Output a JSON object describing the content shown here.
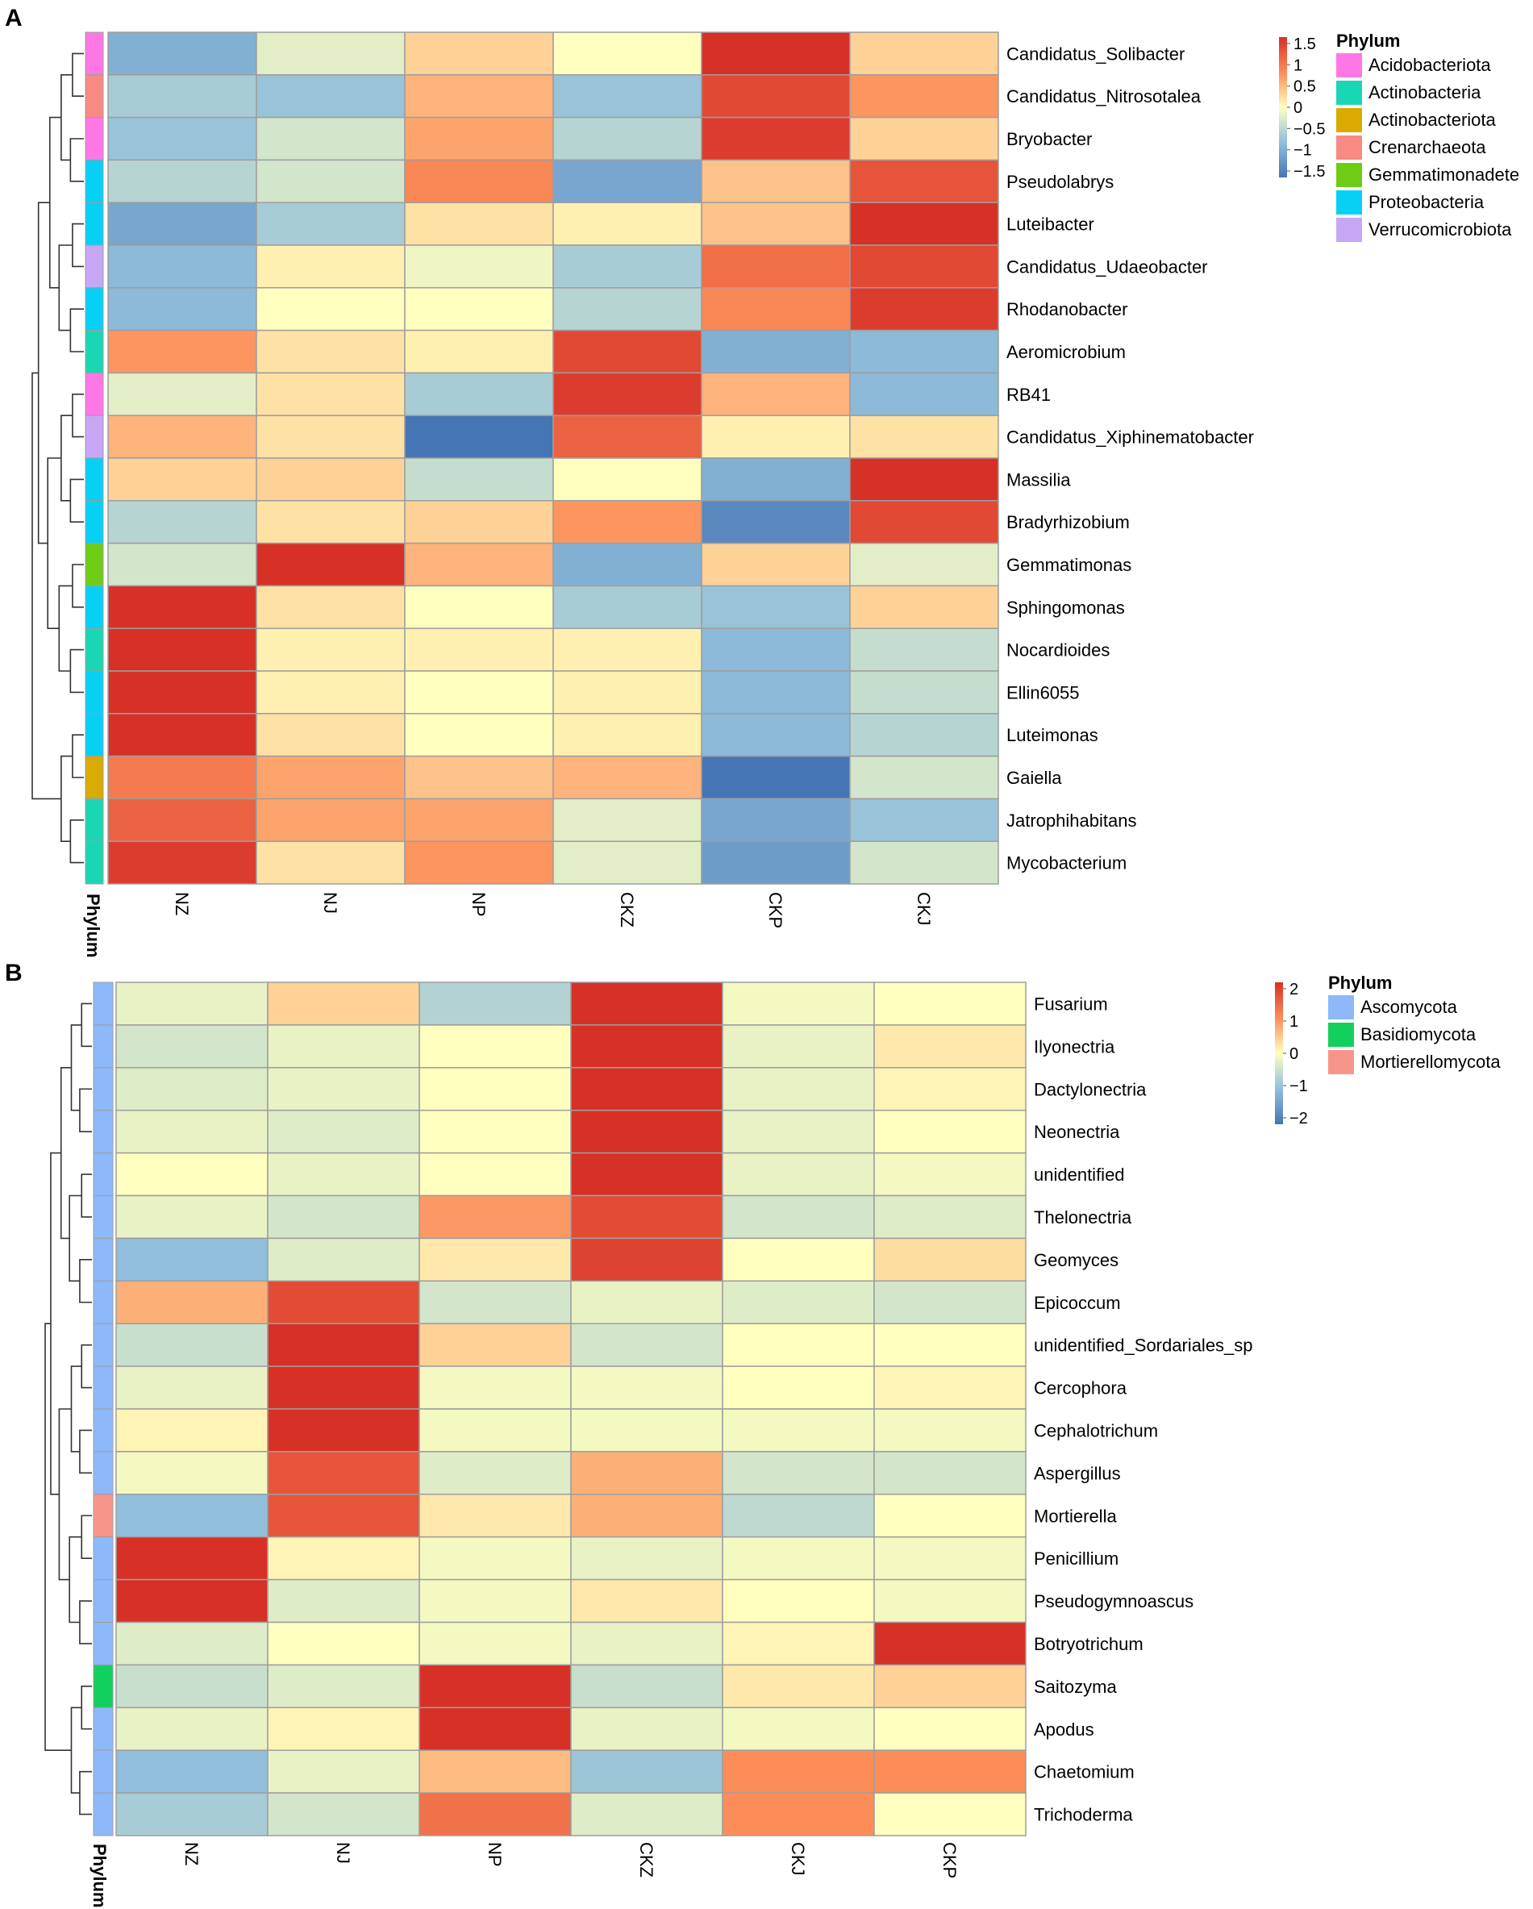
{
  "chart_data": [
    {
      "type": "heatmap",
      "panel": "A",
      "columns": [
        "NZ",
        "NJ",
        "NP",
        "CKZ",
        "CKP",
        "CKJ"
      ],
      "phylum_axis_label": "Phylum",
      "rows": [
        {
          "name": "Candidatus_Solibacter",
          "phylum": "Acidobacteriota",
          "values": [
            -0.9,
            -0.2,
            0.3,
            0.0,
            1.7,
            0.3
          ]
        },
        {
          "name": "Candidatus_Nitrosotalea",
          "phylum": "Crenarchaeota",
          "values": [
            -0.6,
            -0.7,
            0.5,
            -0.7,
            1.3,
            0.7
          ]
        },
        {
          "name": "Bryobacter",
          "phylum": "Acidobacteriota",
          "values": [
            -0.7,
            -0.3,
            0.6,
            -0.5,
            1.4,
            0.3
          ]
        },
        {
          "name": "Pseudolabrys",
          "phylum": "Proteobacteria",
          "values": [
            -0.5,
            -0.3,
            0.8,
            -1.0,
            0.4,
            1.2
          ]
        },
        {
          "name": "Luteibacter",
          "phylum": "Proteobacteria",
          "values": [
            -1.0,
            -0.6,
            0.2,
            0.1,
            0.4,
            1.5
          ]
        },
        {
          "name": "Candidatus_Udaeobacter",
          "phylum": "Verrucomicrobiota",
          "values": [
            -0.8,
            0.1,
            -0.1,
            -0.6,
            1.0,
            1.3
          ]
        },
        {
          "name": "Rhodanobacter",
          "phylum": "Proteobacteria",
          "values": [
            -0.8,
            0.0,
            0.0,
            -0.5,
            0.8,
            1.4
          ]
        },
        {
          "name": "Aeromicrobium",
          "phylum": "Actinobacteria",
          "values": [
            0.7,
            0.2,
            0.1,
            1.3,
            -0.9,
            -0.8
          ]
        },
        {
          "name": "RB41",
          "phylum": "Acidobacteriota",
          "values": [
            -0.2,
            0.2,
            -0.6,
            1.4,
            0.5,
            -0.8
          ]
        },
        {
          "name": "Candidatus_Xiphinematobacter",
          "phylum": "Verrucomicrobiota",
          "values": [
            0.5,
            0.2,
            -1.8,
            1.1,
            0.1,
            0.2
          ]
        },
        {
          "name": "Massilia",
          "phylum": "Proteobacteria",
          "values": [
            0.3,
            0.3,
            -0.4,
            0.0,
            -0.9,
            1.7
          ]
        },
        {
          "name": "Bradyrhizobium",
          "phylum": "Proteobacteria",
          "values": [
            -0.5,
            0.2,
            0.3,
            0.7,
            -1.3,
            1.3
          ]
        },
        {
          "name": "Gemmatimonas",
          "phylum": "Gemmatimonadete",
          "values": [
            -0.3,
            1.5,
            0.5,
            -0.9,
            0.3,
            -0.2
          ]
        },
        {
          "name": "Sphingomonas",
          "phylum": "Proteobacteria",
          "values": [
            1.8,
            0.2,
            0.0,
            -0.6,
            -0.7,
            0.3
          ]
        },
        {
          "name": "Nocardioides",
          "phylum": "Actinobacteria",
          "values": [
            1.8,
            0.1,
            0.1,
            0.1,
            -0.8,
            -0.4
          ]
        },
        {
          "name": "Ellin6055",
          "phylum": "Proteobacteria",
          "values": [
            1.8,
            0.1,
            0.0,
            0.1,
            -0.8,
            -0.4
          ]
        },
        {
          "name": "Luteimonas",
          "phylum": "Proteobacteria",
          "values": [
            1.8,
            0.2,
            0.0,
            0.1,
            -0.8,
            -0.5
          ]
        },
        {
          "name": "Gaiella",
          "phylum": "Actinobacteriota",
          "values": [
            0.9,
            0.6,
            0.4,
            0.5,
            -1.6,
            -0.3
          ]
        },
        {
          "name": "Jatrophihabitans",
          "phylum": "Actinobacteria",
          "values": [
            1.1,
            0.6,
            0.6,
            -0.2,
            -1.0,
            -0.7
          ]
        },
        {
          "name": "Mycobacterium",
          "phylum": "Actinobacteria",
          "values": [
            1.4,
            0.2,
            0.7,
            -0.2,
            -1.1,
            -0.3
          ]
        }
      ],
      "color_scale": {
        "min": -1.5,
        "max": 1.5,
        "ticks": [
          "1.5",
          "1",
          "0.5",
          "0",
          "−0.5",
          "−1",
          "−1.5"
        ]
      },
      "legend": {
        "title": "Phylum",
        "items": [
          {
            "label": "Acidobacteriota",
            "color": "#ff77e6"
          },
          {
            "label": "Actinobacteria",
            "color": "#19d7b4"
          },
          {
            "label": "Actinobacteriota",
            "color": "#d9ab00"
          },
          {
            "label": "Crenarchaeota",
            "color": "#f88a82"
          },
          {
            "label": "Gemmatimonadete",
            "color": "#6fcc16"
          },
          {
            "label": "Proteobacteria",
            "color": "#06d0f5"
          },
          {
            "label": "Verrucomicrobiota",
            "color": "#c7a6f6"
          }
        ]
      }
    },
    {
      "type": "heatmap",
      "panel": "B",
      "columns": [
        "NZ",
        "NJ",
        "NP",
        "CKZ",
        "CKJ",
        "CKP"
      ],
      "phylum_axis_label": "Phylum",
      "rows": [
        {
          "name": "Fusarium",
          "phylum": "Ascomycota",
          "values": [
            -0.2,
            0.4,
            -0.7,
            2.2,
            -0.1,
            0.0
          ]
        },
        {
          "name": "Ilyonectria",
          "phylum": "Ascomycota",
          "values": [
            -0.4,
            -0.2,
            0.0,
            2.2,
            -0.2,
            0.2
          ]
        },
        {
          "name": "Dactylonectria",
          "phylum": "Ascomycota",
          "values": [
            -0.3,
            -0.2,
            0.0,
            2.2,
            -0.2,
            0.1
          ]
        },
        {
          "name": "Neonectria",
          "phylum": "Ascomycota",
          "values": [
            -0.2,
            -0.3,
            0.0,
            2.2,
            -0.2,
            0.0
          ]
        },
        {
          "name": "unidentified",
          "phylum": "Ascomycota",
          "values": [
            0.0,
            -0.2,
            0.0,
            2.2,
            -0.2,
            -0.1
          ]
        },
        {
          "name": "Thelonectria",
          "phylum": "Ascomycota",
          "values": [
            -0.2,
            -0.4,
            0.9,
            1.7,
            -0.4,
            -0.3
          ]
        },
        {
          "name": "Geomyces",
          "phylum": "Ascomycota",
          "values": [
            -1.0,
            -0.3,
            0.2,
            1.8,
            0.0,
            0.3
          ]
        },
        {
          "name": "Epicoccum",
          "phylum": "Ascomycota",
          "values": [
            0.7,
            1.7,
            -0.4,
            -0.2,
            -0.3,
            -0.4
          ]
        },
        {
          "name": "unidentified_Sordariales_sp",
          "phylum": "Ascomycota",
          "values": [
            -0.5,
            2.0,
            0.4,
            -0.4,
            0.0,
            0.0
          ]
        },
        {
          "name": "Cercophora",
          "phylum": "Ascomycota",
          "values": [
            -0.2,
            2.2,
            -0.1,
            -0.1,
            0.0,
            0.1
          ]
        },
        {
          "name": "Cephalotrichum",
          "phylum": "Ascomycota",
          "values": [
            0.1,
            2.2,
            -0.1,
            -0.1,
            -0.1,
            -0.1
          ]
        },
        {
          "name": "Aspergillus",
          "phylum": "Ascomycota",
          "values": [
            -0.1,
            1.6,
            -0.3,
            0.7,
            -0.4,
            -0.4
          ]
        },
        {
          "name": "Mortierella",
          "phylum": "Mortierellomycota",
          "values": [
            -1.0,
            1.6,
            0.2,
            0.7,
            -0.6,
            0.0
          ]
        },
        {
          "name": "Penicillium",
          "phylum": "Ascomycota",
          "values": [
            2.2,
            0.1,
            -0.1,
            -0.2,
            -0.1,
            -0.1
          ]
        },
        {
          "name": "Pseudogymnoascus",
          "phylum": "Ascomycota",
          "values": [
            2.2,
            -0.3,
            -0.1,
            0.2,
            0.0,
            -0.1
          ]
        },
        {
          "name": "Botryotrichum",
          "phylum": "Ascomycota",
          "values": [
            -0.3,
            0.0,
            -0.1,
            -0.2,
            0.1,
            2.1
          ]
        },
        {
          "name": "Saitozyma",
          "phylum": "Basidiomycota",
          "values": [
            -0.5,
            -0.3,
            2.0,
            -0.5,
            0.2,
            0.4
          ]
        },
        {
          "name": "Apodus",
          "phylum": "Ascomycota",
          "values": [
            -0.2,
            0.1,
            2.2,
            -0.2,
            -0.1,
            0.0
          ]
        },
        {
          "name": "Chaetomium",
          "phylum": "Ascomycota",
          "values": [
            -1.0,
            -0.2,
            0.6,
            -0.9,
            1.0,
            1.0
          ]
        },
        {
          "name": "Trichoderma",
          "phylum": "Ascomycota",
          "values": [
            -0.8,
            -0.4,
            1.3,
            -0.3,
            1.0,
            0.0
          ]
        }
      ],
      "color_scale": {
        "min": -2,
        "max": 2,
        "ticks": [
          "2",
          "1",
          "0",
          "−1",
          "−2"
        ]
      },
      "legend": {
        "title": "Phylum",
        "items": [
          {
            "label": "Ascomycota",
            "color": "#8db8fa"
          },
          {
            "label": "Basidiomycota",
            "color": "#12d05e"
          },
          {
            "label": "Mortierellomycota",
            "color": "#f8958a"
          }
        ]
      }
    }
  ]
}
